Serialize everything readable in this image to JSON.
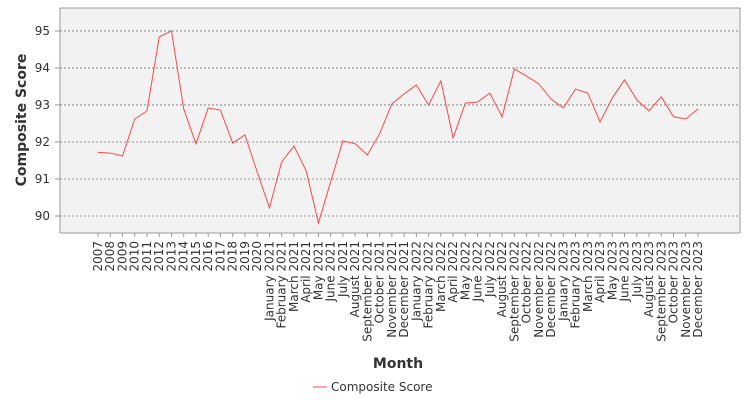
{
  "chart_data": {
    "type": "line",
    "x_label": "Month",
    "y_label": "Composite Score",
    "categories": [
      "2007",
      "2008",
      "2009",
      "2010",
      "2011",
      "2012",
      "2013",
      "2014",
      "2015",
      "2016",
      "2017",
      "2018",
      "2019",
      "2020",
      "January 2021",
      "February 2021",
      "March 2021",
      "April 2021",
      "May 2021",
      "June 2021",
      "July 2021",
      "August 2021",
      "September 2021",
      "October 2021",
      "November 2021",
      "December 2021",
      "January 2022",
      "February 2022",
      "March 2022",
      "April 2022",
      "May 2022",
      "June 2022",
      "July 2022",
      "August 2022",
      "September 2022",
      "October 2022",
      "November 2022",
      "December 2022",
      "January 2023",
      "February 2023",
      "March 2023",
      "April 2023",
      "May 2023",
      "June 2023",
      "July 2023",
      "August 2023",
      "September 2023",
      "October 2023",
      "November 2023",
      "December 2023"
    ],
    "series": [
      {
        "name": "Composite Score",
        "color": "#f44b4b",
        "values": [
          91.72,
          91.7,
          91.62,
          92.62,
          92.84,
          94.84,
          95.0,
          92.89,
          91.95,
          92.92,
          92.86,
          91.97,
          92.19,
          91.19,
          90.22,
          91.46,
          91.89,
          91.22,
          89.81,
          90.92,
          92.03,
          91.95,
          91.65,
          92.22,
          93.03,
          93.3,
          93.54,
          93.0,
          93.65,
          92.11,
          93.05,
          93.08,
          93.32,
          92.68,
          93.97,
          93.78,
          93.57,
          93.16,
          92.92,
          93.43,
          93.32,
          92.54,
          93.19,
          93.68,
          93.14,
          92.84,
          93.22,
          92.68,
          92.62,
          92.89
        ]
      }
    ],
    "ylim": [
      89.54,
      95.62
    ],
    "yticks": [
      90,
      91,
      92,
      93,
      94,
      95
    ],
    "grid": true
  }
}
